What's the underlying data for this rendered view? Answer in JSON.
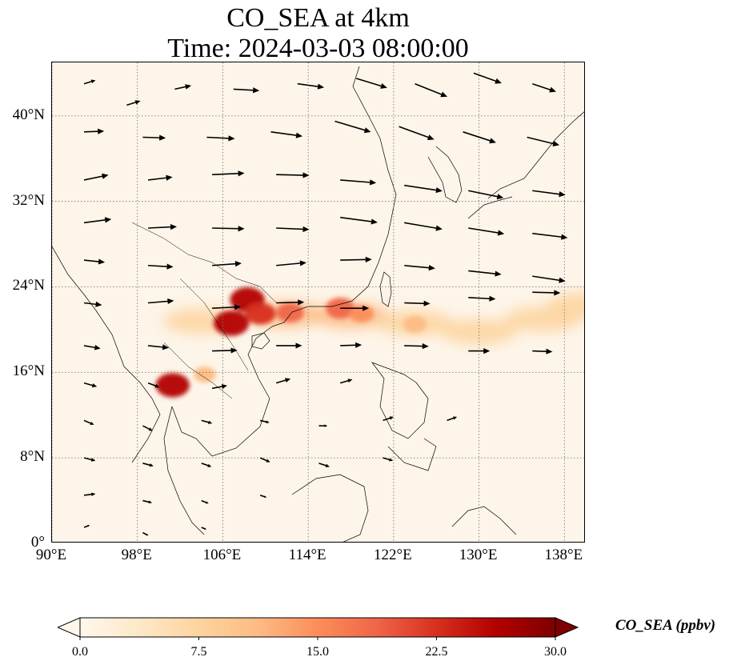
{
  "title": {
    "line1": "CO_SEA at 4km",
    "line2": "Time: 2024-03-03 08:00:00"
  },
  "map": {
    "lon_range": [
      90,
      140
    ],
    "lat_range": [
      0,
      45
    ],
    "lat_ticks": [
      {
        "value": 0,
        "label": "0°"
      },
      {
        "value": 8,
        "label": "8°N"
      },
      {
        "value": 16,
        "label": "16°N"
      },
      {
        "value": 24,
        "label": "24°N"
      },
      {
        "value": 32,
        "label": "32°N"
      },
      {
        "value": 40,
        "label": "40°N"
      }
    ],
    "lon_ticks": [
      {
        "value": 90,
        "label": "90°E"
      },
      {
        "value": 98,
        "label": "98°E"
      },
      {
        "value": 106,
        "label": "106°E"
      },
      {
        "value": 114,
        "label": "114°E"
      },
      {
        "value": 122,
        "label": "122°E"
      },
      {
        "value": 130,
        "label": "130°E"
      },
      {
        "value": 138,
        "label": "138°E"
      }
    ],
    "gridlines": true,
    "background_color": "#fdf5e9",
    "coastline_color": "#000000",
    "grid_color": "#777777",
    "plume_hotspots": [
      {
        "lon": 106.8,
        "lat": 20.6,
        "value": 28
      },
      {
        "lon": 108.3,
        "lat": 22.8,
        "value": 27
      },
      {
        "lon": 109.5,
        "lat": 21.5,
        "value": 22
      },
      {
        "lon": 112.3,
        "lat": 21.6,
        "value": 18
      },
      {
        "lon": 117.0,
        "lat": 22.0,
        "value": 20
      },
      {
        "lon": 119.0,
        "lat": 21.5,
        "value": 14
      },
      {
        "lon": 124.0,
        "lat": 20.5,
        "value": 13
      },
      {
        "lon": 101.3,
        "lat": 14.8,
        "value": 26
      },
      {
        "lon": 104.3,
        "lat": 15.8,
        "value": 11
      }
    ],
    "plume_band": [
      {
        "lon": 104,
        "lat": 20.8,
        "value": 8
      },
      {
        "lon": 112,
        "lat": 21.4,
        "value": 10
      },
      {
        "lon": 118,
        "lat": 21.3,
        "value": 10
      },
      {
        "lon": 124,
        "lat": 20.6,
        "value": 9
      },
      {
        "lon": 130,
        "lat": 19.8,
        "value": 8
      },
      {
        "lon": 136,
        "lat": 21.0,
        "value": 7
      },
      {
        "lon": 140,
        "lat": 22.3,
        "value": 7
      }
    ],
    "wind_vectors": [
      {
        "lon": 93.0,
        "lat": 43.0,
        "u": 1.6,
        "v": 0.5
      },
      {
        "lon": 97.0,
        "lat": 41.0,
        "u": 1.9,
        "v": 0.6
      },
      {
        "lon": 101.5,
        "lat": 42.5,
        "u": 2.3,
        "v": 0.5
      },
      {
        "lon": 107.0,
        "lat": 42.5,
        "u": 3.6,
        "v": -0.2
      },
      {
        "lon": 113.0,
        "lat": 43.0,
        "u": 3.7,
        "v": -0.5
      },
      {
        "lon": 118.5,
        "lat": 43.5,
        "u": 4.3,
        "v": -1.3
      },
      {
        "lon": 124.0,
        "lat": 43.0,
        "u": 4.5,
        "v": -1.8
      },
      {
        "lon": 129.5,
        "lat": 44.0,
        "u": 3.9,
        "v": -1.4
      },
      {
        "lon": 135.0,
        "lat": 43.0,
        "u": 3.3,
        "v": -1.1
      },
      {
        "lon": 93.0,
        "lat": 38.5,
        "u": 2.8,
        "v": 0.1
      },
      {
        "lon": 98.5,
        "lat": 38.0,
        "u": 3.2,
        "v": -0.1
      },
      {
        "lon": 104.5,
        "lat": 38.0,
        "u": 3.9,
        "v": -0.2
      },
      {
        "lon": 110.5,
        "lat": 38.5,
        "u": 4.4,
        "v": -0.6
      },
      {
        "lon": 116.5,
        "lat": 39.5,
        "u": 5.0,
        "v": -1.5
      },
      {
        "lon": 122.5,
        "lat": 39.0,
        "u": 4.9,
        "v": -1.8
      },
      {
        "lon": 128.5,
        "lat": 38.5,
        "u": 4.6,
        "v": -1.5
      },
      {
        "lon": 134.5,
        "lat": 38.0,
        "u": 4.5,
        "v": -1.1
      },
      {
        "lon": 93.0,
        "lat": 34.0,
        "u": 3.4,
        "v": 0.7
      },
      {
        "lon": 99.0,
        "lat": 34.0,
        "u": 3.4,
        "v": 0.4
      },
      {
        "lon": 105.0,
        "lat": 34.5,
        "u": 4.5,
        "v": 0.2
      },
      {
        "lon": 111.0,
        "lat": 34.5,
        "u": 4.6,
        "v": -0.1
      },
      {
        "lon": 117.0,
        "lat": 34.0,
        "u": 5.0,
        "v": -0.4
      },
      {
        "lon": 123.0,
        "lat": 33.5,
        "u": 5.3,
        "v": -0.8
      },
      {
        "lon": 129.0,
        "lat": 33.0,
        "u": 4.9,
        "v": -1.0
      },
      {
        "lon": 135.0,
        "lat": 33.0,
        "u": 4.6,
        "v": -0.6
      },
      {
        "lon": 93.0,
        "lat": 30.0,
        "u": 3.8,
        "v": 0.5
      },
      {
        "lon": 99.0,
        "lat": 29.5,
        "u": 4.0,
        "v": 0.2
      },
      {
        "lon": 105.0,
        "lat": 29.5,
        "u": 4.5,
        "v": -0.1
      },
      {
        "lon": 111.0,
        "lat": 29.5,
        "u": 4.6,
        "v": -0.2
      },
      {
        "lon": 117.0,
        "lat": 30.5,
        "u": 5.2,
        "v": -0.7
      },
      {
        "lon": 123.0,
        "lat": 30.0,
        "u": 5.3,
        "v": -0.9
      },
      {
        "lon": 129.0,
        "lat": 29.5,
        "u": 5.0,
        "v": -0.8
      },
      {
        "lon": 135.0,
        "lat": 29.0,
        "u": 4.9,
        "v": -0.6
      },
      {
        "lon": 93.0,
        "lat": 26.5,
        "u": 2.9,
        "v": -0.3
      },
      {
        "lon": 99.0,
        "lat": 26.0,
        "u": 3.5,
        "v": -0.2
      },
      {
        "lon": 105.0,
        "lat": 26.0,
        "u": 4.1,
        "v": 0.3
      },
      {
        "lon": 111.0,
        "lat": 26.0,
        "u": 4.2,
        "v": 0.4
      },
      {
        "lon": 117.0,
        "lat": 26.5,
        "u": 4.4,
        "v": 0.1
      },
      {
        "lon": 123.0,
        "lat": 26.0,
        "u": 4.3,
        "v": -0.4
      },
      {
        "lon": 129.0,
        "lat": 25.5,
        "u": 4.6,
        "v": -0.5
      },
      {
        "lon": 135.0,
        "lat": 25.0,
        "u": 4.6,
        "v": -0.7
      },
      {
        "lon": 93.0,
        "lat": 22.5,
        "u": 2.5,
        "v": -0.3
      },
      {
        "lon": 99.0,
        "lat": 22.5,
        "u": 3.6,
        "v": 0.3
      },
      {
        "lon": 105.0,
        "lat": 22.0,
        "u": 4.0,
        "v": 0.2
      },
      {
        "lon": 111.0,
        "lat": 22.5,
        "u": 3.9,
        "v": 0.1
      },
      {
        "lon": 117.0,
        "lat": 22.0,
        "u": 4.0,
        "v": 0.0
      },
      {
        "lon": 123.0,
        "lat": 22.5,
        "u": 3.6,
        "v": -0.1
      },
      {
        "lon": 129.0,
        "lat": 23.0,
        "u": 3.8,
        "v": -0.2
      },
      {
        "lon": 135.0,
        "lat": 23.5,
        "u": 3.9,
        "v": -0.1
      },
      {
        "lon": 93.0,
        "lat": 18.5,
        "u": 2.3,
        "v": -0.4
      },
      {
        "lon": 99.0,
        "lat": 18.5,
        "u": 2.9,
        "v": -0.3
      },
      {
        "lon": 105.0,
        "lat": 18.0,
        "u": 3.5,
        "v": 0.1
      },
      {
        "lon": 111.0,
        "lat": 18.5,
        "u": 3.6,
        "v": 0.0
      },
      {
        "lon": 117.0,
        "lat": 18.5,
        "u": 3.0,
        "v": 0.1
      },
      {
        "lon": 123.0,
        "lat": 18.5,
        "u": 3.4,
        "v": -0.1
      },
      {
        "lon": 129.0,
        "lat": 18.0,
        "u": 3.0,
        "v": 0.0
      },
      {
        "lon": 135.0,
        "lat": 18.0,
        "u": 2.8,
        "v": -0.1
      },
      {
        "lon": 93.0,
        "lat": 15.0,
        "u": 1.8,
        "v": -0.5
      },
      {
        "lon": 99.0,
        "lat": 15.0,
        "u": 1.6,
        "v": -0.6
      },
      {
        "lon": 105.0,
        "lat": 14.5,
        "u": 2.1,
        "v": 0.4
      },
      {
        "lon": 111.0,
        "lat": 15.0,
        "u": 2.0,
        "v": 0.6
      },
      {
        "lon": 117.0,
        "lat": 15.0,
        "u": 1.7,
        "v": 0.5
      },
      {
        "lon": 93.0,
        "lat": 11.5,
        "u": 1.4,
        "v": -0.6
      },
      {
        "lon": 98.5,
        "lat": 11.0,
        "u": 1.4,
        "v": -0.7
      },
      {
        "lon": 104.0,
        "lat": 11.5,
        "u": 1.5,
        "v": -0.4
      },
      {
        "lon": 109.5,
        "lat": 11.5,
        "u": 1.3,
        "v": -0.3
      },
      {
        "lon": 115.0,
        "lat": 11.0,
        "u": 1.2,
        "v": 0.0
      },
      {
        "lon": 121.0,
        "lat": 11.5,
        "u": 1.5,
        "v": 0.5
      },
      {
        "lon": 127.0,
        "lat": 11.5,
        "u": 1.4,
        "v": 0.5
      },
      {
        "lon": 93.0,
        "lat": 8.0,
        "u": 1.6,
        "v": -0.4
      },
      {
        "lon": 98.5,
        "lat": 7.5,
        "u": 1.5,
        "v": -0.4
      },
      {
        "lon": 104.0,
        "lat": 7.5,
        "u": 1.4,
        "v": -0.5
      },
      {
        "lon": 109.5,
        "lat": 8.0,
        "u": 1.4,
        "v": -0.6
      },
      {
        "lon": 115.0,
        "lat": 7.5,
        "u": 1.5,
        "v": -0.5
      },
      {
        "lon": 121.0,
        "lat": 8.0,
        "u": 1.4,
        "v": -0.4
      },
      {
        "lon": 93.0,
        "lat": 4.5,
        "u": 1.6,
        "v": 0.2
      },
      {
        "lon": 98.5,
        "lat": 4.0,
        "u": 1.3,
        "v": -0.3
      },
      {
        "lon": 104.0,
        "lat": 4.0,
        "u": 1.0,
        "v": -0.4
      },
      {
        "lon": 109.5,
        "lat": 4.5,
        "u": 0.9,
        "v": -0.3
      },
      {
        "lon": 93.0,
        "lat": 1.5,
        "u": 0.8,
        "v": 0.3
      },
      {
        "lon": 98.5,
        "lat": 1.0,
        "u": 0.8,
        "v": -0.4
      },
      {
        "lon": 104.0,
        "lat": 1.5,
        "u": 0.7,
        "v": -0.3
      }
    ]
  },
  "colorbar": {
    "label": "CO_SEA (ppbv)",
    "min": 0.0,
    "max": 30.0,
    "extend": "both",
    "ticks": [
      "0.0",
      "7.5",
      "15.0",
      "22.5",
      "30.0"
    ],
    "tick_values": [
      0.0,
      7.5,
      15.0,
      22.5,
      30.0
    ],
    "colormap": "OrRd",
    "colors": [
      "#fff7ec",
      "#fee8c8",
      "#fdd49e",
      "#fdbb84",
      "#fc8d59",
      "#ef6548",
      "#d7301f",
      "#b30000",
      "#7f0000"
    ]
  }
}
